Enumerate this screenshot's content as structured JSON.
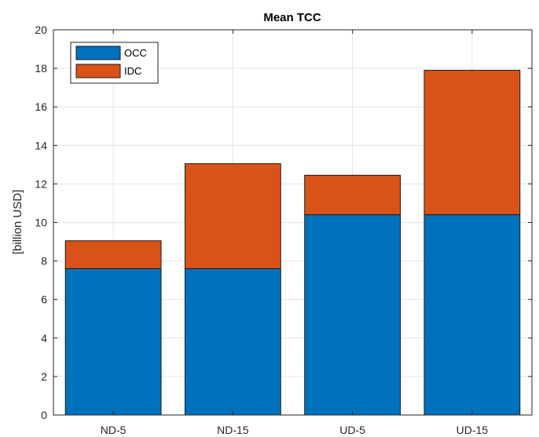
{
  "chart_data": {
    "type": "bar",
    "stacked": true,
    "title": "Mean TCC",
    "xlabel": "",
    "ylabel": "[billion USD]",
    "categories": [
      "ND-5",
      "ND-15",
      "UD-5",
      "UD-15"
    ],
    "series": [
      {
        "name": "OCC",
        "color": "#0072BD",
        "values": [
          7.6,
          7.6,
          10.4,
          10.4
        ]
      },
      {
        "name": "IDC",
        "color": "#D95319",
        "values": [
          1.45,
          5.45,
          2.05,
          7.5
        ]
      }
    ],
    "ylim": [
      0,
      20
    ],
    "yticks": [
      0,
      2,
      4,
      6,
      8,
      10,
      12,
      14,
      16,
      18,
      20
    ],
    "grid": true,
    "legend_position": "top-left"
  }
}
